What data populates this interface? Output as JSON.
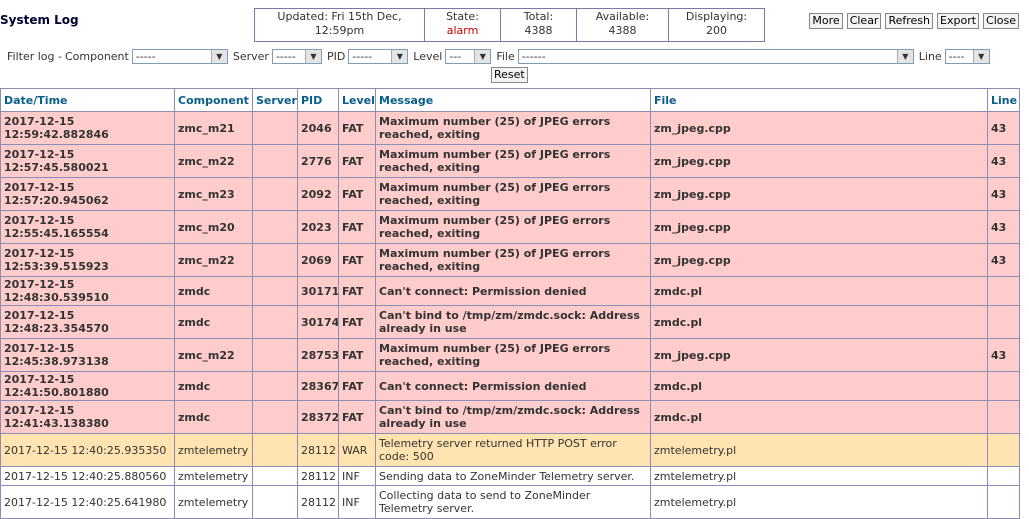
{
  "header": {
    "title": "System Log",
    "status": {
      "updated_label": "Updated: Fri 15th Dec,",
      "updated_time": "12:59pm",
      "state_label": "State:",
      "state_value": "alarm",
      "total_label": "Total:",
      "total_value": "4388",
      "available_label": "Available:",
      "available_value": "4388",
      "displaying_label": "Displaying:",
      "displaying_value": "200"
    },
    "buttons": {
      "more": "More",
      "clear": "Clear",
      "refresh": "Refresh",
      "export": "Export",
      "close": "Close"
    }
  },
  "filters": {
    "title": "Filter log -",
    "component_label": "Component",
    "component_value": "-----",
    "server_label": "Server",
    "server_value": "-----",
    "pid_label": "PID",
    "pid_value": "-----",
    "level_label": "Level",
    "level_value": "---",
    "file_label": "File",
    "file_value": "------",
    "line_label": "Line",
    "line_value": "----",
    "reset_label": "Reset"
  },
  "table": {
    "columns": [
      "Date/Time",
      "Component",
      "Server",
      "PID",
      "Level",
      "Message",
      "File",
      "Line"
    ],
    "rows": [
      {
        "level_class": "fat",
        "datetime": "2017-12-15 12:59:42.882846",
        "component": "zmc_m21",
        "server": "",
        "pid": "2046",
        "level": "FAT",
        "message": "Maximum number (25) of JPEG errors reached, exiting",
        "file": "zm_jpeg.cpp",
        "line": "43"
      },
      {
        "level_class": "fat",
        "datetime": "2017-12-15 12:57:45.580021",
        "component": "zmc_m22",
        "server": "",
        "pid": "2776",
        "level": "FAT",
        "message": "Maximum number (25) of JPEG errors reached, exiting",
        "file": "zm_jpeg.cpp",
        "line": "43"
      },
      {
        "level_class": "fat",
        "datetime": "2017-12-15 12:57:20.945062",
        "component": "zmc_m23",
        "server": "",
        "pid": "2092",
        "level": "FAT",
        "message": "Maximum number (25) of JPEG errors reached, exiting",
        "file": "zm_jpeg.cpp",
        "line": "43"
      },
      {
        "level_class": "fat",
        "datetime": "2017-12-15 12:55:45.165554",
        "component": "zmc_m20",
        "server": "",
        "pid": "2023",
        "level": "FAT",
        "message": "Maximum number (25) of JPEG errors reached, exiting",
        "file": "zm_jpeg.cpp",
        "line": "43"
      },
      {
        "level_class": "fat",
        "datetime": "2017-12-15 12:53:39.515923",
        "component": "zmc_m22",
        "server": "",
        "pid": "2069",
        "level": "FAT",
        "message": "Maximum number (25) of JPEG errors reached, exiting",
        "file": "zm_jpeg.cpp",
        "line": "43"
      },
      {
        "level_class": "fat",
        "datetime": "2017-12-15 12:48:30.539510",
        "component": "zmdc",
        "server": "",
        "pid": "30171",
        "level": "FAT",
        "message": "Can't connect: Permission denied",
        "file": "zmdc.pl",
        "line": ""
      },
      {
        "level_class": "fat",
        "datetime": "2017-12-15 12:48:23.354570",
        "component": "zmdc",
        "server": "",
        "pid": "30174",
        "level": "FAT",
        "message": "Can't bind to /tmp/zm/zmdc.sock: Address already in use",
        "file": "zmdc.pl",
        "line": ""
      },
      {
        "level_class": "fat",
        "datetime": "2017-12-15 12:45:38.973138",
        "component": "zmc_m22",
        "server": "",
        "pid": "28753",
        "level": "FAT",
        "message": "Maximum number (25) of JPEG errors reached, exiting",
        "file": "zm_jpeg.cpp",
        "line": "43"
      },
      {
        "level_class": "fat",
        "datetime": "2017-12-15 12:41:50.801880",
        "component": "zmdc",
        "server": "",
        "pid": "28367",
        "level": "FAT",
        "message": "Can't connect: Permission denied",
        "file": "zmdc.pl",
        "line": ""
      },
      {
        "level_class": "fat",
        "datetime": "2017-12-15 12:41:43.138380",
        "component": "zmdc",
        "server": "",
        "pid": "28372",
        "level": "FAT",
        "message": "Can't bind to /tmp/zm/zmdc.sock: Address already in use",
        "file": "zmdc.pl",
        "line": ""
      },
      {
        "level_class": "war",
        "datetime": "2017-12-15 12:40:25.935350",
        "component": "zmtelemetry",
        "server": "",
        "pid": "28112",
        "level": "WAR",
        "message": "Telemetry server returned HTTP POST error code: 500",
        "file": "zmtelemetry.pl",
        "line": ""
      },
      {
        "level_class": "inf",
        "datetime": "2017-12-15 12:40:25.880560",
        "component": "zmtelemetry",
        "server": "",
        "pid": "28112",
        "level": "INF",
        "message": "Sending data to ZoneMinder Telemetry server.",
        "file": "zmtelemetry.pl",
        "line": ""
      },
      {
        "level_class": "inf",
        "datetime": "2017-12-15 12:40:25.641980",
        "component": "zmtelemetry",
        "server": "",
        "pid": "28112",
        "level": "INF",
        "message": "Collecting data to send to ZoneMinder Telemetry server.",
        "file": "zmtelemetry.pl",
        "line": ""
      }
    ]
  }
}
